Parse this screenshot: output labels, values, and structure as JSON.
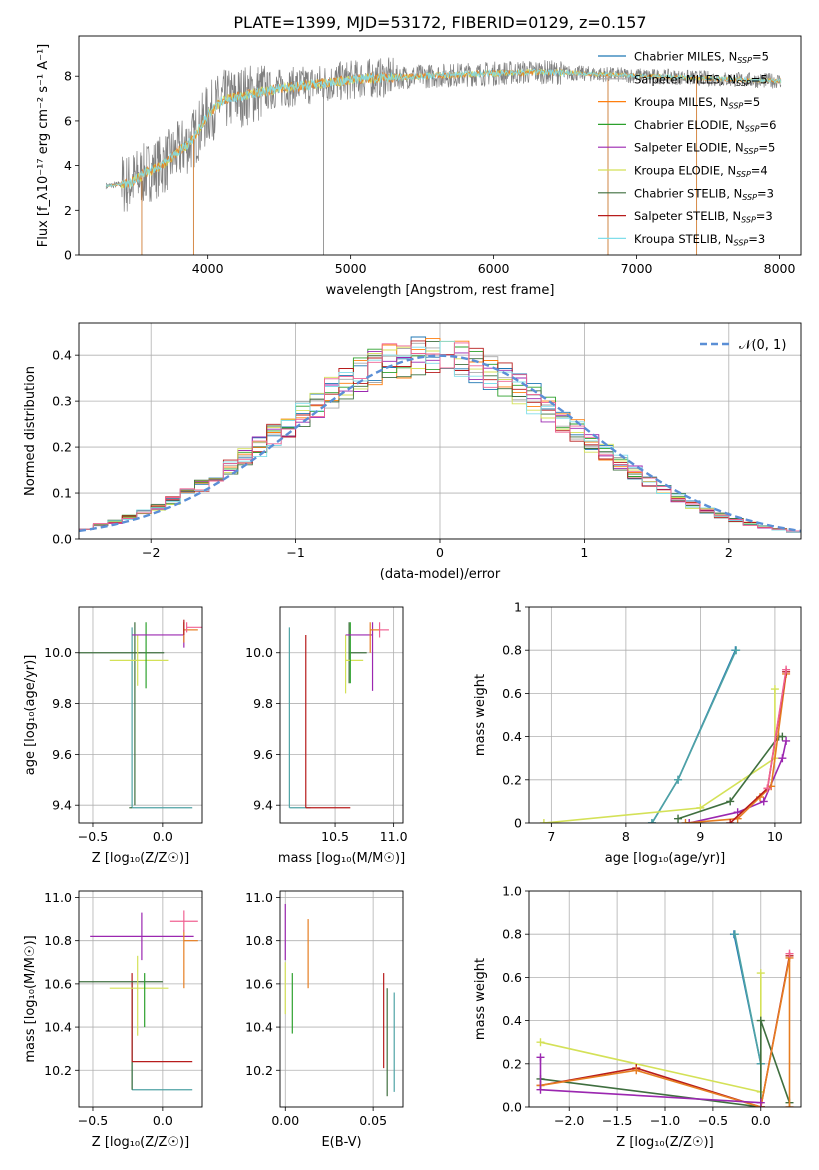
{
  "figure_title": "PLATE=1399, MJD=53172, FIBERID=0129, z=0.157",
  "colors": {
    "chabrier_miles": "#1f77b4",
    "salpeter_miles": "#aaaaaa",
    "kroupa_miles": "#ff7f0e",
    "chabrier_elodie": "#2ca02c",
    "salpeter_elodie": "#9b27b0",
    "kroupa_elodie": "#d4e157",
    "chabrier_stelib": "#3f6f3f",
    "salpeter_stelib": "#b71c1c",
    "kroupa_stelib": "#80deea",
    "model_orange": "#e67e22",
    "model_pink": "#f06292",
    "model_teal": "#4fa3a5",
    "normal_curve": "#5b8fd6",
    "data_gray": "#808080",
    "grid": "#b0b0b0"
  },
  "chart_data": [
    {
      "id": "spectrum",
      "type": "line",
      "xlabel": "wavelength [Angstrom, rest frame]",
      "ylabel": "Flux [f_λ10⁻¹⁷ erg cm⁻² s⁻¹ A⁻¹]",
      "xlim": [
        3100,
        8150
      ],
      "ylim": [
        0,
        9.8
      ],
      "xticks": [
        4000,
        5000,
        6000,
        7000,
        8000
      ],
      "yticks": [
        0,
        2,
        4,
        6,
        8
      ],
      "grid": false,
      "legend_position": "right",
      "legend": [
        {
          "label": "Chabrier MILES, N",
          "sub": "SSP",
          "suffix": "=5",
          "color_key": "chabrier_miles"
        },
        {
          "label": "Salpeter MILES, N",
          "sub": "SSP",
          "suffix": "=5",
          "color_key": "salpeter_miles"
        },
        {
          "label": "Kroupa MILES, N",
          "sub": "SSP",
          "suffix": "=5",
          "color_key": "kroupa_miles"
        },
        {
          "label": "Chabrier ELODIE, N",
          "sub": "SSP",
          "suffix": "=6",
          "color_key": "chabrier_elodie"
        },
        {
          "label": "Salpeter ELODIE, N",
          "sub": "SSP",
          "suffix": "=5",
          "color_key": "salpeter_elodie"
        },
        {
          "label": "Kroupa ELODIE, N",
          "sub": "SSP",
          "suffix": "=4",
          "color_key": "kroupa_elodie"
        },
        {
          "label": "Chabrier STELIB, N",
          "sub": "SSP",
          "suffix": "=3",
          "color_key": "chabrier_stelib"
        },
        {
          "label": "Salpeter STELIB, N",
          "sub": "SSP",
          "suffix": "=3",
          "color_key": "salpeter_stelib"
        },
        {
          "label": "Kroupa STELIB, N",
          "sub": "SSP",
          "suffix": "=3",
          "color_key": "kroupa_stelib"
        }
      ],
      "continuum": {
        "x": [
          3300,
          3450,
          3550,
          3700,
          3900,
          4000,
          4100,
          4300,
          4500,
          4700,
          4900,
          5100,
          5300,
          5500,
          5700,
          5900,
          6100,
          6300,
          6500,
          6700,
          6900,
          7100,
          7300,
          7500,
          7700,
          7900,
          8000
        ],
        "y": [
          3.1,
          3.2,
          3.6,
          4.1,
          5.2,
          6.3,
          6.9,
          7.2,
          7.45,
          7.6,
          7.75,
          7.9,
          7.95,
          8.0,
          8.05,
          8.1,
          8.15,
          8.2,
          8.15,
          8.1,
          8.05,
          8.0,
          7.95,
          7.9,
          7.85,
          7.8,
          7.8
        ]
      },
      "dropouts": [
        {
          "x": 3540,
          "to": 0.0
        },
        {
          "x": 3900,
          "to": 0.0
        },
        {
          "x": 4810,
          "to": 0.0
        },
        {
          "x": 6800,
          "to": 0.0
        },
        {
          "x": 7420,
          "to": 0.0
        }
      ]
    },
    {
      "id": "residuals",
      "type": "histogram",
      "xlabel": "(data-model)/error",
      "ylabel": "Normed distribution",
      "xlim": [
        -2.5,
        2.5
      ],
      "ylim": [
        0,
        0.47
      ],
      "xticks": [
        -2,
        -1,
        0,
        1,
        2
      ],
      "yticks": [
        0.0,
        0.1,
        0.2,
        0.3,
        0.4
      ],
      "grid": true,
      "legend": [
        {
          "label": "𝒩(0, 1)",
          "color_key": "normal_curve",
          "style": "dashed"
        }
      ],
      "legend_position": "top-right",
      "bin_width": 0.1,
      "series_color_keys": [
        "chabrier_miles",
        "salpeter_miles",
        "kroupa_miles",
        "chabrier_elodie",
        "salpeter_elodie",
        "kroupa_elodie",
        "chabrier_stelib",
        "salpeter_stelib",
        "kroupa_stelib",
        "model_pink"
      ]
    },
    {
      "id": "age_vs_z",
      "type": "scatter",
      "xlabel": "Z [log₁₀(Z/Z☉)]",
      "ylabel": "age  [log₁₀(age/yr)]",
      "xlim": [
        -0.6,
        0.28
      ],
      "ylim": [
        9.33,
        10.18
      ],
      "xticks": [
        -0.5,
        0.0
      ],
      "xtick_labels": [
        "−0.5",
        "0.0"
      ],
      "yticks": [
        9.4,
        9.6,
        9.8,
        10.0
      ],
      "ytick_labels": [
        "9.4",
        "9.6",
        "9.8",
        "10.0"
      ],
      "grid": true,
      "points": [
        {
          "x": -0.22,
          "y": 9.39,
          "xerr": [
            0.0,
            0.43
          ],
          "yerr": [
            0.0,
            0.71
          ],
          "color_key": "model_teal"
        },
        {
          "x": -0.22,
          "y": 9.39,
          "xerr": [
            0.02,
            0.0
          ],
          "yerr": [
            0.0,
            0.0
          ],
          "color_key": "chabrier_stelib"
        },
        {
          "x": -0.2,
          "y": 10.0,
          "xerr": [
            0.4,
            0.21
          ],
          "yerr": [
            0.6,
            0.12
          ],
          "color_key": "chabrier_stelib"
        },
        {
          "x": -0.18,
          "y": 9.97,
          "xerr": [
            0.2,
            0.22
          ],
          "yerr": [
            0.1,
            0.1
          ],
          "color_key": "kroupa_elodie"
        },
        {
          "x": -0.12,
          "y": 9.99,
          "xerr": [
            0.0,
            0.0
          ],
          "yerr": [
            0.13,
            0.13
          ],
          "color_key": "chabrier_elodie"
        },
        {
          "x": 0.15,
          "y": 10.07,
          "xerr": [
            0.37,
            0.0
          ],
          "yerr": [
            0.05,
            0.05
          ],
          "color_key": "salpeter_elodie"
        },
        {
          "x": 0.15,
          "y": 10.09,
          "xerr": [
            0.0,
            0.1
          ],
          "yerr": [
            0.05,
            0.03
          ],
          "color_key": "model_orange"
        },
        {
          "x": 0.15,
          "y": 10.1,
          "xerr": [
            0.0,
            0.0
          ],
          "yerr": [
            0.03,
            0.03
          ],
          "color_key": "salpeter_stelib"
        },
        {
          "x": 0.17,
          "y": 10.1,
          "xerr": [
            0.0,
            0.12
          ],
          "yerr": [
            0.02,
            0.02
          ],
          "color_key": "model_pink"
        }
      ]
    },
    {
      "id": "age_vs_mass",
      "type": "scatter",
      "xlabel": "mass [log₁₀(M/M☉)]",
      "ylabel": "",
      "xlim": [
        10.03,
        11.08
      ],
      "ylim": [
        9.33,
        10.18
      ],
      "xticks": [
        10.5,
        11.0
      ],
      "xtick_labels": [
        "10.5",
        "11.0"
      ],
      "yticks": [
        9.4,
        9.6,
        9.8,
        10.0
      ],
      "ytick_labels": [
        "9.4",
        "9.6",
        "9.8",
        "10.0"
      ],
      "grid": true,
      "points": [
        {
          "x": 10.11,
          "y": 9.39,
          "xerr": [
            0.0,
            0.18
          ],
          "yerr": [
            0.0,
            0.71
          ],
          "color_key": "model_teal"
        },
        {
          "x": 10.25,
          "y": 9.39,
          "xerr": [
            0.0,
            0.38
          ],
          "yerr": [
            0.0,
            0.68
          ],
          "color_key": "salpeter_stelib"
        },
        {
          "x": 10.62,
          "y": 10.0,
          "xerr": [
            0.0,
            0.15
          ],
          "yerr": [
            0.12,
            0.12
          ],
          "color_key": "chabrier_stelib"
        },
        {
          "x": 10.59,
          "y": 9.97,
          "xerr": [
            0.0,
            0.15
          ],
          "yerr": [
            0.13,
            0.1
          ],
          "color_key": "kroupa_elodie"
        },
        {
          "x": 10.63,
          "y": 10.0,
          "xerr": [
            0.0,
            0.0
          ],
          "yerr": [
            0.12,
            0.12
          ],
          "color_key": "chabrier_elodie"
        },
        {
          "x": 10.82,
          "y": 10.07,
          "xerr": [
            0.23,
            0.0
          ],
          "yerr": [
            0.22,
            0.05
          ],
          "color_key": "salpeter_elodie"
        },
        {
          "x": 10.8,
          "y": 10.09,
          "xerr": [
            0.0,
            0.08
          ],
          "yerr": [
            0.09,
            0.03
          ],
          "color_key": "model_orange"
        },
        {
          "x": 10.88,
          "y": 10.09,
          "xerr": [
            0.0,
            0.08
          ],
          "yerr": [
            0.03,
            0.03
          ],
          "color_key": "model_pink"
        }
      ]
    },
    {
      "id": "mass_weight_vs_age",
      "type": "line",
      "xlabel": "age  [log₁₀(age/yr)]",
      "ylabel": "mass weight",
      "xlim": [
        6.7,
        10.35
      ],
      "ylim": [
        0,
        1.0
      ],
      "xticks": [
        7,
        8,
        9,
        10
      ],
      "yticks": [
        0.0,
        0.2,
        0.4,
        0.6,
        0.8,
        1.0
      ],
      "grid": true,
      "series": [
        {
          "color_key": "chabrier_miles",
          "x": [
            8.35,
            8.7,
            9.47
          ],
          "y": [
            0.0,
            0.2,
            0.8
          ]
        },
        {
          "color_key": "model_teal",
          "x": [
            8.35,
            8.7,
            9.48
          ],
          "y": [
            0.0,
            0.2,
            0.8
          ]
        },
        {
          "color_key": "kroupa_elodie",
          "x": [
            6.9,
            9.0,
            10.0,
            10.0
          ],
          "y": [
            0.0,
            0.07,
            0.3,
            0.62
          ]
        },
        {
          "color_key": "chabrier_stelib",
          "x": [
            8.7,
            9.4,
            10.05,
            10.1
          ],
          "y": [
            0.02,
            0.1,
            0.4,
            0.4
          ]
        },
        {
          "color_key": "salpeter_elodie",
          "x": [
            8.85,
            9.5,
            9.85,
            10.1,
            10.15
          ],
          "y": [
            0.0,
            0.05,
            0.1,
            0.3,
            0.38
          ]
        },
        {
          "color_key": "model_orange",
          "x": [
            8.8,
            9.5,
            9.8,
            9.95,
            10.15
          ],
          "y": [
            0.0,
            0.02,
            0.12,
            0.17,
            0.69
          ]
        },
        {
          "color_key": "salpeter_stelib",
          "x": [
            9.4,
            9.9,
            10.15
          ],
          "y": [
            0.0,
            0.16,
            0.7
          ]
        },
        {
          "color_key": "model_pink",
          "x": [
            9.9,
            10.15
          ],
          "y": [
            0.16,
            0.71
          ]
        }
      ]
    },
    {
      "id": "mass_vs_z",
      "type": "scatter",
      "xlabel": "Z [log₁₀(Z/Z☉)]",
      "ylabel": "mass [log₁₀(M/M☉)]",
      "xlim": [
        -0.6,
        0.28
      ],
      "ylim": [
        10.03,
        11.03
      ],
      "xticks": [
        -0.5,
        0.0
      ],
      "xtick_labels": [
        "−0.5",
        "0.0"
      ],
      "yticks": [
        10.2,
        10.4,
        10.6,
        10.8,
        11.0
      ],
      "ytick_labels": [
        "10.2",
        "10.4",
        "10.6",
        "10.8",
        "11.0"
      ],
      "grid": true,
      "points": [
        {
          "x": -0.22,
          "y": 10.11,
          "xerr": [
            0.0,
            0.43
          ],
          "yerr": [
            0.0,
            0.5
          ],
          "color_key": "model_teal"
        },
        {
          "x": -0.22,
          "y": 10.11,
          "xerr": [
            0.0,
            0.0
          ],
          "yerr": [
            0.0,
            0.47
          ],
          "color_key": "chabrier_stelib"
        },
        {
          "x": -0.22,
          "y": 10.24,
          "xerr": [
            0.0,
            0.43
          ],
          "yerr": [
            0.0,
            0.41
          ],
          "color_key": "salpeter_stelib"
        },
        {
          "x": -0.2,
          "y": 10.61,
          "xerr": [
            0.4,
            0.2
          ],
          "yerr": [
            0.0,
            0.0
          ],
          "color_key": "chabrier_stelib"
        },
        {
          "x": -0.18,
          "y": 10.58,
          "xerr": [
            0.2,
            0.22
          ],
          "yerr": [
            0.22,
            0.15
          ],
          "color_key": "kroupa_elodie"
        },
        {
          "x": -0.13,
          "y": 10.6,
          "xerr": [
            0.0,
            0.0
          ],
          "yerr": [
            0.2,
            0.05
          ],
          "color_key": "chabrier_elodie"
        },
        {
          "x": -0.15,
          "y": 10.82,
          "xerr": [
            0.37,
            0.37
          ],
          "yerr": [
            0.11,
            0.11
          ],
          "color_key": "salpeter_elodie"
        },
        {
          "x": 0.15,
          "y": 10.8,
          "xerr": [
            0.0,
            0.1
          ],
          "yerr": [
            0.22,
            0.05
          ],
          "color_key": "model_orange"
        },
        {
          "x": 0.15,
          "y": 10.89,
          "xerr": [
            0.1,
            0.1
          ],
          "yerr": [
            0.05,
            0.05
          ],
          "color_key": "model_pink"
        }
      ]
    },
    {
      "id": "mass_vs_ebv",
      "type": "scatter",
      "xlabel": "E(B-V)",
      "ylabel": "",
      "xlim": [
        -0.003,
        0.067
      ],
      "ylim": [
        10.03,
        11.03
      ],
      "xticks": [
        0.0,
        0.05
      ],
      "xtick_labels": [
        "0.00",
        "0.05"
      ],
      "yticks": [
        10.2,
        10.4,
        10.6,
        10.8,
        11.0
      ],
      "ytick_labels": [
        "10.2",
        "10.4",
        "10.6",
        "10.8",
        "11.0"
      ],
      "grid": true,
      "points": [
        {
          "x": 0.0,
          "y": 10.82,
          "xerr": [
            0.0,
            0.0
          ],
          "yerr": [
            0.11,
            0.15
          ],
          "color_key": "salpeter_elodie"
        },
        {
          "x": 0.0,
          "y": 10.58,
          "xerr": [
            0.0,
            0.0
          ],
          "yerr": [
            0.12,
            0.12
          ],
          "color_key": "kroupa_elodie"
        },
        {
          "x": 0.004,
          "y": 10.55,
          "xerr": [
            0.0,
            0.0
          ],
          "yerr": [
            0.18,
            0.1
          ],
          "color_key": "chabrier_elodie"
        },
        {
          "x": 0.013,
          "y": 10.8,
          "xerr": [
            0.0,
            0.0
          ],
          "yerr": [
            0.22,
            0.1
          ],
          "color_key": "model_orange"
        },
        {
          "x": 0.056,
          "y": 10.43,
          "xerr": [
            0.0,
            0.0
          ],
          "yerr": [
            0.22,
            0.22
          ],
          "color_key": "salpeter_stelib"
        },
        {
          "x": 0.058,
          "y": 10.33,
          "xerr": [
            0.0,
            0.0
          ],
          "yerr": [
            0.25,
            0.25
          ],
          "color_key": "chabrier_stelib"
        },
        {
          "x": 0.062,
          "y": 10.33,
          "xerr": [
            0.0,
            0.0
          ],
          "yerr": [
            0.23,
            0.23
          ],
          "color_key": "model_teal"
        }
      ]
    },
    {
      "id": "mass_weight_vs_z",
      "type": "line",
      "xlabel": "Z [log₁₀(Z/Z☉)]",
      "ylabel": "mass weight",
      "xlim": [
        -2.42,
        0.42
      ],
      "ylim": [
        0,
        1.0
      ],
      "xticks": [
        -2.0,
        -1.5,
        -1.0,
        -0.5,
        0.0
      ],
      "xtick_labels": [
        "−2.0",
        "−1.5",
        "−1.0",
        "−0.5",
        "0.0"
      ],
      "yticks": [
        0.0,
        0.2,
        0.4,
        0.6,
        0.8,
        1.0
      ],
      "ytick_labels": [
        "0.0",
        "0.2",
        "0.4",
        "0.6",
        "0.8",
        "1.0"
      ],
      "grid": true,
      "series": [
        {
          "color_key": "chabrier_miles",
          "x": [
            -0.28,
            0.0,
            0.0
          ],
          "y": [
            0.8,
            0.2,
            0.0
          ]
        },
        {
          "color_key": "model_teal",
          "x": [
            -0.27,
            0.0
          ],
          "y": [
            0.8,
            0.2
          ]
        },
        {
          "color_key": "kroupa_elodie",
          "x": [
            -2.3,
            0.0,
            0.0
          ],
          "y": [
            0.3,
            0.07,
            0.62
          ]
        },
        {
          "color_key": "chabrier_stelib",
          "x": [
            -2.3,
            0.0,
            0.0,
            0.3
          ],
          "y": [
            0.13,
            0.0,
            0.4,
            0.02
          ]
        },
        {
          "color_key": "salpeter_stelib",
          "x": [
            -2.3,
            -1.3,
            0.0,
            0.3
          ],
          "y": [
            0.1,
            0.18,
            0.0,
            0.7
          ]
        },
        {
          "color_key": "model_orange",
          "x": [
            -2.3,
            -1.3,
            0.0,
            0.3,
            0.3
          ],
          "y": [
            0.1,
            0.17,
            0.0,
            0.69,
            0.0
          ]
        },
        {
          "color_key": "salpeter_elodie",
          "x": [
            -2.3,
            -2.3,
            0.0
          ],
          "y": [
            0.23,
            0.08,
            0.02
          ]
        },
        {
          "color_key": "model_pink",
          "x": [
            0.3
          ],
          "y": [
            0.71
          ]
        }
      ]
    }
  ]
}
